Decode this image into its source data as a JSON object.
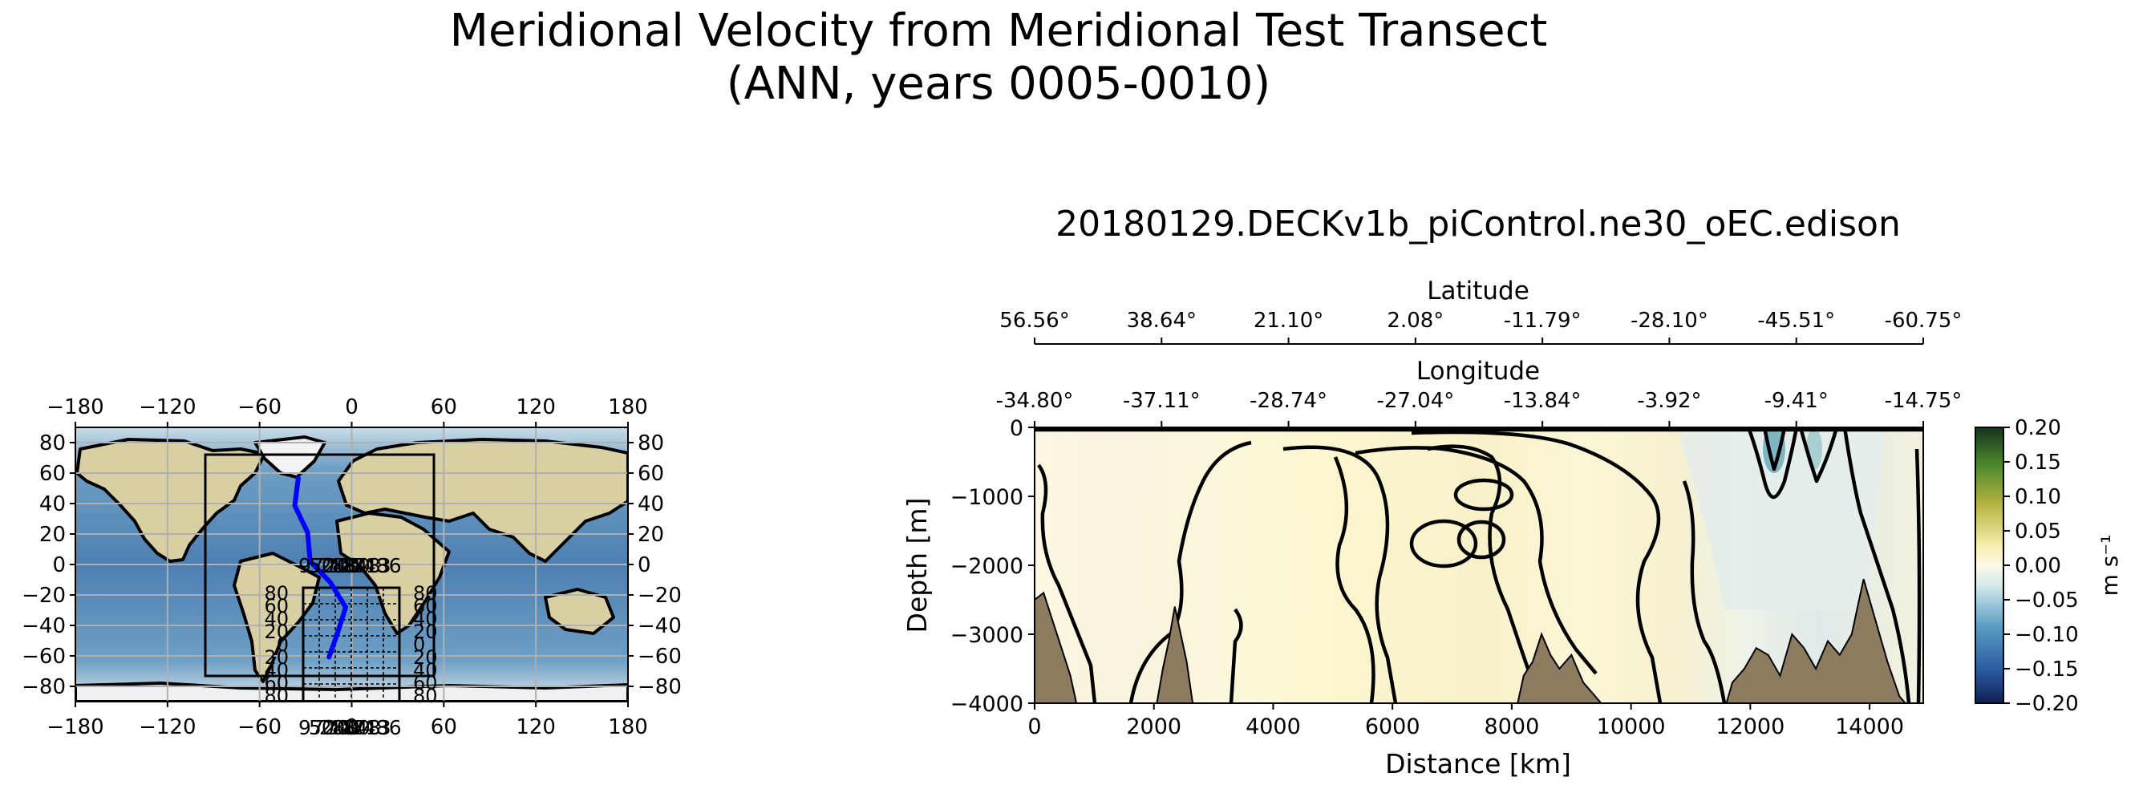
{
  "figure": {
    "title_line1": "Meridional Velocity from Meridional Test Transect",
    "title_line2": "(ANN, years 0005-0010)"
  },
  "chart_data": [
    {
      "type": "map",
      "projection": "PlateCarree",
      "lon_ticks": [
        -180,
        -120,
        -60,
        0,
        60,
        120,
        180
      ],
      "lat_ticks": [
        80,
        60,
        40,
        20,
        0,
        -20,
        -40,
        -60,
        -80
      ],
      "lon_tick_labels": [
        "−180",
        "−120",
        "−60",
        "0",
        "60",
        "120",
        "180"
      ],
      "lat_tick_labels": [
        "80",
        "60",
        "40",
        "20",
        "0",
        "−20",
        "−40",
        "−60",
        "−80"
      ],
      "grid": true,
      "transect_color": "#0000ff",
      "transect": [
        [
          -34.8,
          56.56
        ],
        [
          -37.11,
          38.64
        ],
        [
          -28.74,
          21.1
        ],
        [
          -27.04,
          2.08
        ],
        [
          -13.84,
          -11.79
        ],
        [
          -3.92,
          -28.1
        ],
        [
          -9.41,
          -45.51
        ],
        [
          -14.75,
          -60.75
        ]
      ],
      "inset_extent": {
        "lon": [
          -60,
          40
        ],
        "lat": [
          -90,
          90
        ]
      },
      "overlapping_labels": [
        "9720",
        "5040",
        "2880",
        "1848",
        "1713",
        "1486"
      ]
    },
    {
      "type": "heatmap",
      "title": "20180129.DECKv1b_piControl.ne30_oEC.edison",
      "xlabel": "Distance [km]",
      "ylabel": "Depth [m]",
      "xlim": [
        0,
        14900
      ],
      "ylim": [
        -4000,
        0
      ],
      "x_ticks": [
        0,
        2000,
        4000,
        6000,
        8000,
        10000,
        12000,
        14000
      ],
      "y_ticks": [
        0,
        -1000,
        -2000,
        -3000,
        -4000
      ],
      "y_tick_labels": [
        "0",
        "−1000",
        "−2000",
        "−3000",
        "−4000"
      ],
      "top_axis_latitude": {
        "label": "Latitude",
        "ticks": [
          "56.56°",
          "38.64°",
          "21.10°",
          "2.08°",
          "-11.79°",
          "-28.10°",
          "-45.51°",
          "-60.75°"
        ]
      },
      "top_axis_longitude": {
        "label": "Longitude",
        "ticks": [
          "-34.80°",
          "-37.11°",
          "-28.74°",
          "-27.04°",
          "-13.84°",
          "-3.92°",
          "-9.41°",
          "-14.75°"
        ]
      },
      "colorbar": {
        "label": "m s⁻¹",
        "range": [
          -0.2,
          0.2
        ],
        "ticks": [
          "0.20",
          "0.15",
          "0.10",
          "0.05",
          "0.00",
          "−0.05",
          "−0.10",
          "−0.15",
          "−0.20"
        ],
        "colors": [
          "#0f1f52",
          "#2a5aa0",
          "#5b9ec4",
          "#cfe7ea",
          "#fdfbe8",
          "#f4eca8",
          "#b5b440",
          "#4f8a2e",
          "#14331c"
        ]
      },
      "bathymetry_color": "#8c7b5e"
    }
  ]
}
